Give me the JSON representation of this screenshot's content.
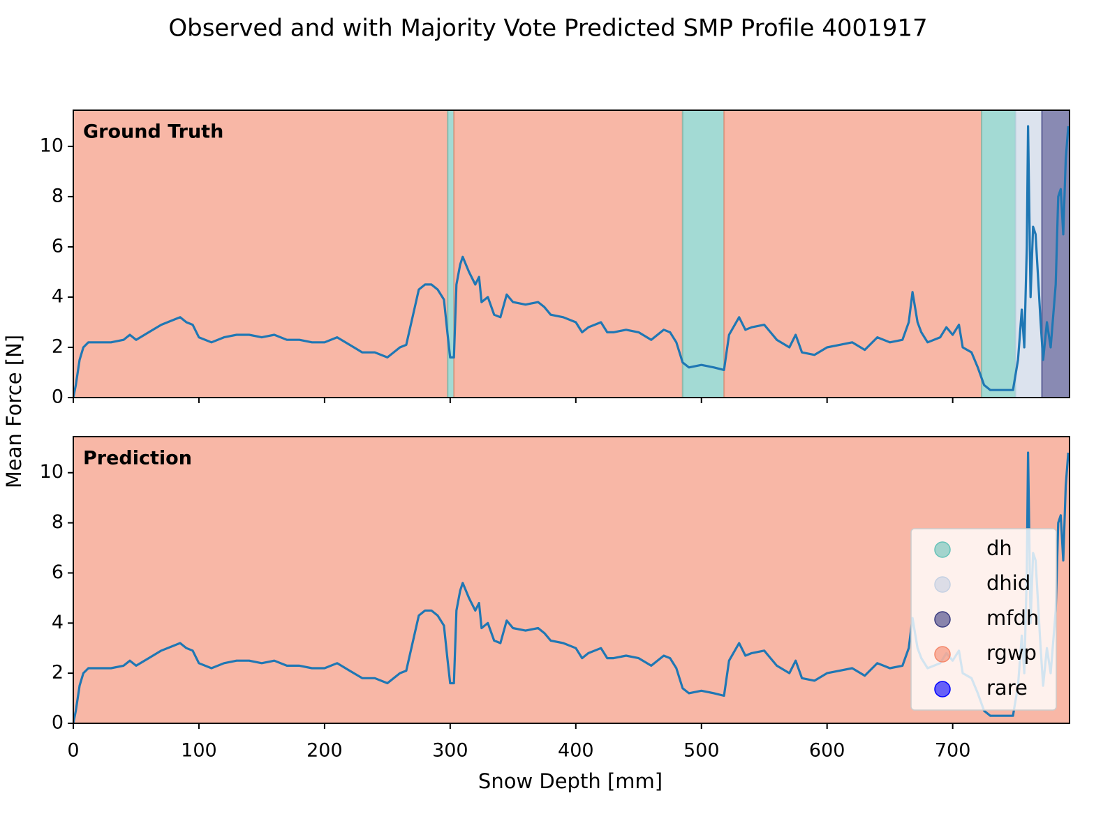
{
  "chart_data": {
    "type": "line",
    "title": "Observed and with Majority Vote Predicted SMP Profile 4001917",
    "xlabel": "Snow Depth [mm]",
    "ylabel": "Mean Force [N]",
    "line_color": "#1f77b4",
    "xlim": [
      0,
      793
    ],
    "ylim": [
      0,
      11.44
    ],
    "xticks": [
      0,
      100,
      200,
      300,
      400,
      500,
      600,
      700
    ],
    "yticks": [
      0,
      2,
      4,
      6,
      8,
      10
    ],
    "x": [
      0,
      2,
      5,
      8,
      12,
      20,
      30,
      40,
      45,
      50,
      60,
      70,
      80,
      85,
      90,
      95,
      100,
      110,
      120,
      130,
      140,
      150,
      160,
      170,
      180,
      190,
      200,
      210,
      220,
      230,
      240,
      250,
      260,
      265,
      270,
      275,
      280,
      285,
      290,
      295,
      298,
      300,
      303,
      305,
      308,
      310,
      315,
      320,
      323,
      325,
      330,
      335,
      340,
      345,
      350,
      360,
      370,
      375,
      380,
      390,
      400,
      405,
      410,
      415,
      420,
      425,
      430,
      440,
      450,
      460,
      470,
      475,
      480,
      485,
      490,
      500,
      510,
      518,
      522,
      530,
      535,
      540,
      550,
      555,
      560,
      570,
      575,
      580,
      590,
      600,
      610,
      620,
      630,
      640,
      650,
      660,
      665,
      668,
      672,
      675,
      680,
      690,
      695,
      700,
      705,
      708,
      715,
      720,
      725,
      730,
      740,
      748,
      752,
      755,
      757,
      759,
      760,
      762,
      764,
      766,
      770,
      772,
      775,
      778,
      782,
      784,
      786,
      788,
      790,
      792
    ],
    "values": [
      0,
      0.5,
      1.5,
      2.0,
      2.2,
      2.2,
      2.2,
      2.3,
      2.5,
      2.3,
      2.6,
      2.9,
      3.1,
      3.2,
      3.0,
      2.9,
      2.4,
      2.2,
      2.4,
      2.5,
      2.5,
      2.4,
      2.5,
      2.3,
      2.3,
      2.2,
      2.2,
      2.4,
      2.1,
      1.8,
      1.8,
      1.6,
      2.0,
      2.1,
      3.2,
      4.3,
      4.5,
      4.5,
      4.3,
      3.9,
      2.5,
      1.6,
      1.6,
      4.5,
      5.3,
      5.6,
      5.0,
      4.5,
      4.8,
      3.8,
      4.0,
      3.3,
      3.2,
      4.1,
      3.8,
      3.7,
      3.8,
      3.6,
      3.3,
      3.2,
      3.0,
      2.6,
      2.8,
      2.9,
      3.0,
      2.6,
      2.6,
      2.7,
      2.6,
      2.3,
      2.7,
      2.6,
      2.2,
      1.4,
      1.2,
      1.3,
      1.2,
      1.1,
      2.5,
      3.2,
      2.7,
      2.8,
      2.9,
      2.6,
      2.3,
      2.0,
      2.5,
      1.8,
      1.7,
      2.0,
      2.1,
      2.2,
      1.9,
      2.4,
      2.2,
      2.3,
      3.0,
      4.2,
      3.0,
      2.6,
      2.2,
      2.4,
      2.8,
      2.5,
      2.9,
      2.0,
      1.8,
      1.2,
      0.5,
      0.3,
      0.3,
      0.3,
      1.5,
      3.5,
      2.0,
      6.0,
      10.8,
      4.0,
      6.8,
      6.5,
      3.0,
      1.5,
      3.0,
      2.0,
      4.5,
      8.0,
      8.3,
      6.5,
      9.5,
      10.8
    ],
    "panels": [
      {
        "label": "Ground Truth",
        "segments": [
          {
            "label": "rgwp",
            "start": 0,
            "end": 298
          },
          {
            "label": "dh",
            "start": 298,
            "end": 303
          },
          {
            "label": "rgwp",
            "start": 303,
            "end": 485
          },
          {
            "label": "dh",
            "start": 485,
            "end": 518
          },
          {
            "label": "rgwp",
            "start": 518,
            "end": 723
          },
          {
            "label": "dh",
            "start": 723,
            "end": 750
          },
          {
            "label": "dhid",
            "start": 750,
            "end": 771
          },
          {
            "label": "mfdh",
            "start": 771,
            "end": 793
          }
        ]
      },
      {
        "label": "Prediction",
        "segments": [
          {
            "label": "rgwp",
            "start": 0,
            "end": 793
          }
        ],
        "legend": {
          "loc": "lower right",
          "items": [
            {
              "name": "dh",
              "color": "#66c2b8"
            },
            {
              "name": "dhid",
              "color": "#c4d0e2"
            },
            {
              "name": "mfdh",
              "color": "#3b3c80"
            },
            {
              "name": "rgwp",
              "color": "#f4876a"
            },
            {
              "name": "rare",
              "color": "#0000ff"
            }
          ]
        }
      }
    ]
  }
}
